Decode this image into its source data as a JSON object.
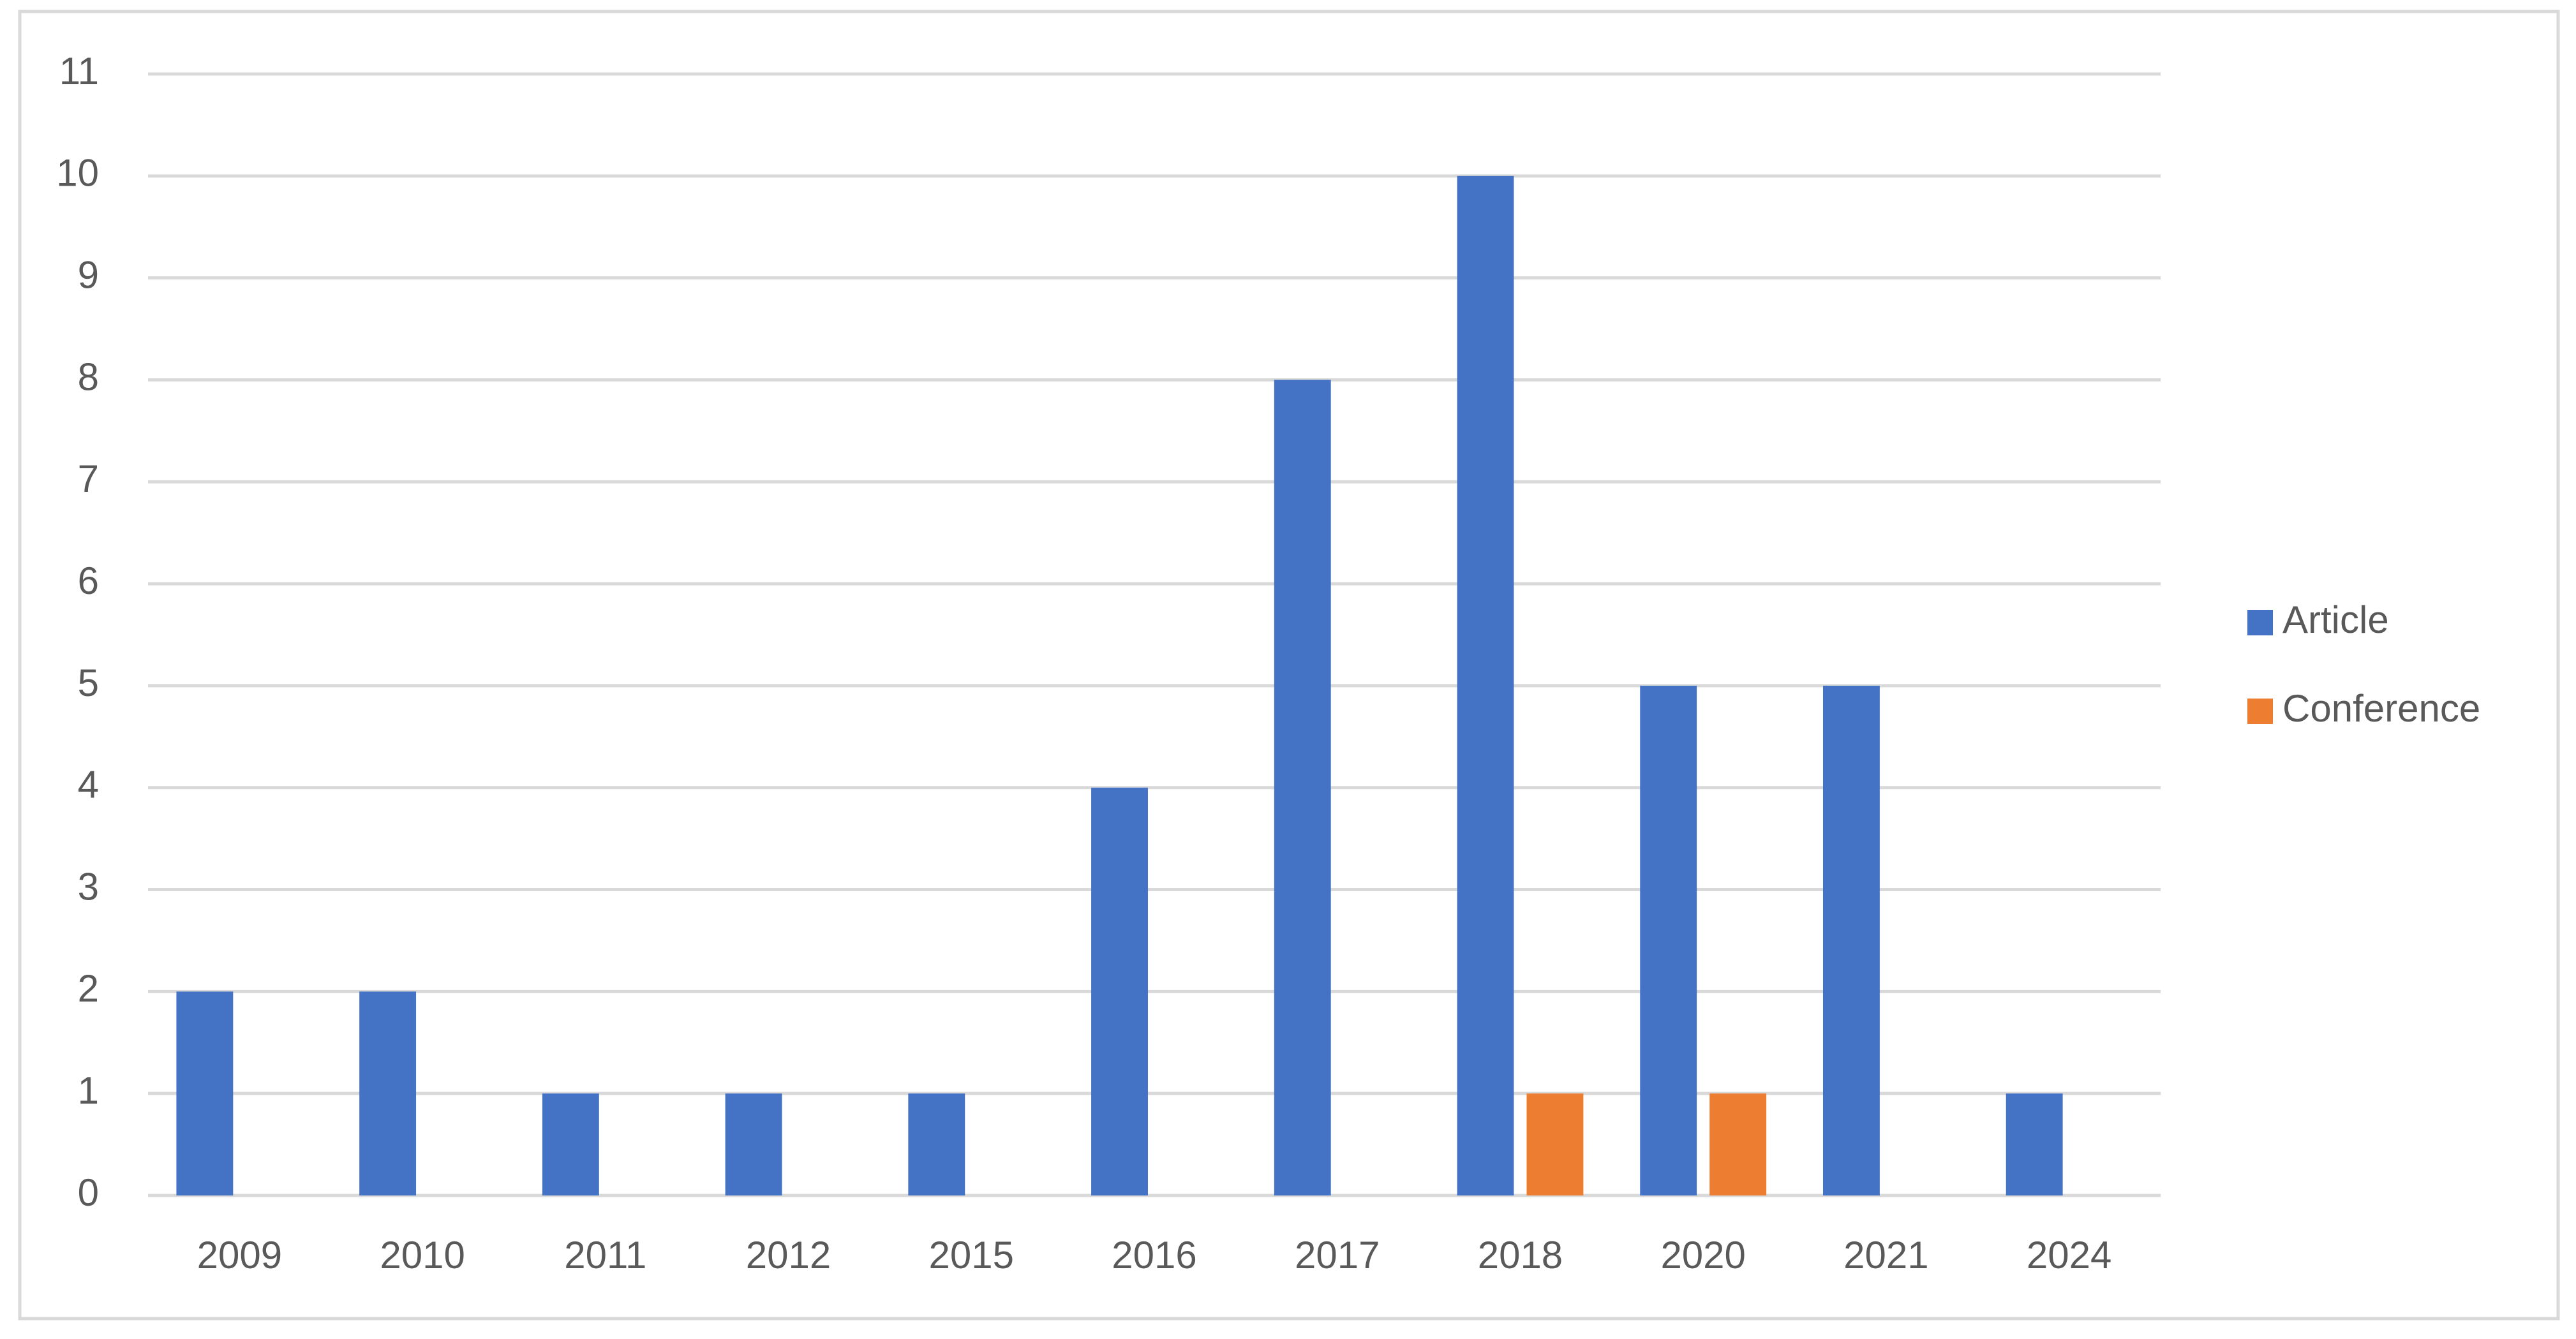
{
  "chart_data": {
    "type": "bar",
    "categories": [
      "2009",
      "2010",
      "2011",
      "2012",
      "2015",
      "2016",
      "2017",
      "2018",
      "2020",
      "2021",
      "2024"
    ],
    "series": [
      {
        "name": "Article",
        "color": "#4472c4",
        "values": [
          2,
          2,
          1,
          1,
          1,
          4,
          8,
          10,
          5,
          5,
          1
        ]
      },
      {
        "name": "Conference",
        "color": "#ed7d31",
        "values": [
          0,
          0,
          0,
          0,
          0,
          0,
          0,
          1,
          1,
          0,
          0
        ]
      }
    ],
    "ylim": [
      0,
      11
    ],
    "yticks": [
      0,
      1,
      2,
      3,
      4,
      5,
      6,
      7,
      8,
      9,
      10,
      11
    ],
    "grid": true,
    "legend": "right"
  }
}
